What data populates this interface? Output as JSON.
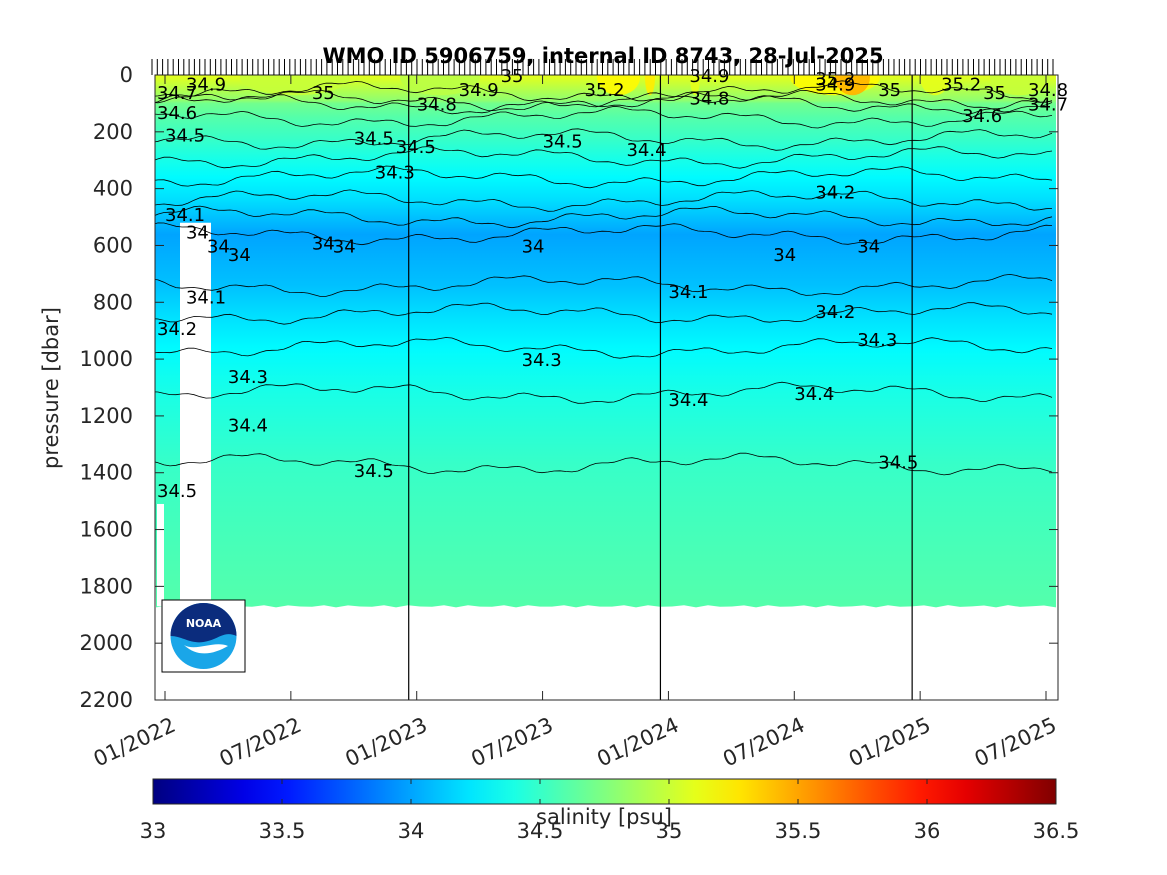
{
  "chart_data": {
    "type": "heatmap",
    "title": "WMO ID 5906759, internal ID 8743, 28-Jul-2025",
    "xlabel": "",
    "ylabel": "pressure [dbar]",
    "x_ticks": [
      "01/2022",
      "07/2022",
      "01/2023",
      "07/2023",
      "01/2024",
      "07/2024",
      "01/2025",
      "07/2025"
    ],
    "x_range": [
      "12/2021",
      "08/2025"
    ],
    "ylim": [
      0,
      2200
    ],
    "y_reversed": true,
    "y_ticks": [
      0,
      200,
      400,
      600,
      800,
      1000,
      1200,
      1400,
      1600,
      1800,
      2000,
      2200
    ],
    "year_boundaries": [
      "01/2023",
      "01/2024",
      "01/2025"
    ],
    "profile_depth_max": 1870,
    "colorbar": {
      "label": "salinity [psu]",
      "range": [
        33,
        36.5
      ],
      "ticks": [
        33,
        33.5,
        34,
        34.5,
        35,
        35.5,
        36,
        36.5
      ],
      "colormap": "jet"
    },
    "series": [
      {
        "level": 34.9,
        "pressure": [
          0,
          60
        ]
      },
      {
        "level": 34.8,
        "pressure": [
          0,
          90
        ]
      },
      {
        "level": 34.7,
        "pressure": [
          0,
          100
        ]
      },
      {
        "level": 34.6,
        "pressure": [
          0,
          150
        ]
      },
      {
        "level": 34.5,
        "pressure": [
          0,
          225
        ]
      },
      {
        "level": 34.4,
        "pressure": [
          0,
          290
        ]
      },
      {
        "level": 34.3,
        "pressure": [
          0,
          360
        ]
      },
      {
        "level": 34.2,
        "pressure": [
          0,
          440
        ]
      },
      {
        "level": 34.1,
        "pressure": [
          0,
          500
        ]
      },
      {
        "level": 34.0,
        "pressure": [
          0,
          560
        ]
      },
      {
        "level": 34.1,
        "pressure": [
          0,
          740
        ]
      },
      {
        "level": 34.2,
        "pressure": [
          0,
          840
        ]
      },
      {
        "level": 34.3,
        "pressure": [
          0,
          960
        ]
      },
      {
        "level": 34.4,
        "pressure": [
          0,
          1120
        ]
      },
      {
        "level": 34.5,
        "pressure": [
          0,
          1370
        ]
      }
    ],
    "contour_labels": [
      {
        "text": "34.9",
        "date": "2022-02",
        "pressure": 30
      },
      {
        "text": "34.6",
        "date": "2021-12",
        "pressure": 130
      },
      {
        "text": "34.7",
        "date": "2021-12",
        "pressure": 60
      },
      {
        "text": "34.5",
        "date": "2022-01",
        "pressure": 210
      },
      {
        "text": "35",
        "date": "2022-08",
        "pressure": 60
      },
      {
        "text": "34.8",
        "date": "2023-01",
        "pressure": 100
      },
      {
        "text": "34.9",
        "date": "2023-03",
        "pressure": 50
      },
      {
        "text": "35",
        "date": "2023-05",
        "pressure": 0
      },
      {
        "text": "35.2",
        "date": "2023-09",
        "pressure": 50
      },
      {
        "text": "34.9",
        "date": "2024-02",
        "pressure": 0
      },
      {
        "text": "34.8",
        "date": "2024-02",
        "pressure": 80
      },
      {
        "text": "34.9",
        "date": "2024-08",
        "pressure": 30
      },
      {
        "text": "35.2",
        "date": "2024-08",
        "pressure": 10
      },
      {
        "text": "35",
        "date": "2024-11",
        "pressure": 50
      },
      {
        "text": "35.2",
        "date": "2025-02",
        "pressure": 30
      },
      {
        "text": "35",
        "date": "2025-04",
        "pressure": 60
      },
      {
        "text": "34.8",
        "date": "2025-07",
        "pressure": 50
      },
      {
        "text": "34.7",
        "date": "2025-07",
        "pressure": 100
      },
      {
        "text": "34.6",
        "date": "2025-03",
        "pressure": 140
      },
      {
        "text": "34.5",
        "date": "2022-10",
        "pressure": 220
      },
      {
        "text": "34.5",
        "date": "2022-12",
        "pressure": 250
      },
      {
        "text": "34.5",
        "date": "2023-07",
        "pressure": 230
      },
      {
        "text": "34.4",
        "date": "2023-11",
        "pressure": 260
      },
      {
        "text": "34.3",
        "date": "2022-11",
        "pressure": 340
      },
      {
        "text": "34.2",
        "date": "2024-08",
        "pressure": 410
      },
      {
        "text": "34.1",
        "date": "2022-01",
        "pressure": 490
      },
      {
        "text": "34",
        "date": "2022-02",
        "pressure": 550
      },
      {
        "text": "34",
        "date": "2022-03",
        "pressure": 600
      },
      {
        "text": "34",
        "date": "2022-04",
        "pressure": 630
      },
      {
        "text": "34",
        "date": "2022-08",
        "pressure": 590
      },
      {
        "text": "34",
        "date": "2022-09",
        "pressure": 600
      },
      {
        "text": "34",
        "date": "2023-06",
        "pressure": 600
      },
      {
        "text": "34",
        "date": "2024-06",
        "pressure": 630
      },
      {
        "text": "34",
        "date": "2024-10",
        "pressure": 600
      },
      {
        "text": "34.1",
        "date": "2022-02",
        "pressure": 780
      },
      {
        "text": "34.1",
        "date": "2024-01",
        "pressure": 760
      },
      {
        "text": "34.2",
        "date": "2021-12",
        "pressure": 890
      },
      {
        "text": "34.2",
        "date": "2024-08",
        "pressure": 830
      },
      {
        "text": "34.3",
        "date": "2024-10",
        "pressure": 930
      },
      {
        "text": "34.3",
        "date": "2023-06",
        "pressure": 1000
      },
      {
        "text": "34.3",
        "date": "2022-04",
        "pressure": 1060
      },
      {
        "text": "34.4",
        "date": "2024-01",
        "pressure": 1140
      },
      {
        "text": "34.4",
        "date": "2024-07",
        "pressure": 1120
      },
      {
        "text": "34.4",
        "date": "2022-04",
        "pressure": 1230
      },
      {
        "text": "34.5",
        "date": "2022-10",
        "pressure": 1390
      },
      {
        "text": "34.5",
        "date": "2024-11",
        "pressure": 1360
      },
      {
        "text": "34.5",
        "date": "2021-12",
        "pressure": 1460
      }
    ]
  },
  "logo": {
    "text": "NOAA"
  }
}
